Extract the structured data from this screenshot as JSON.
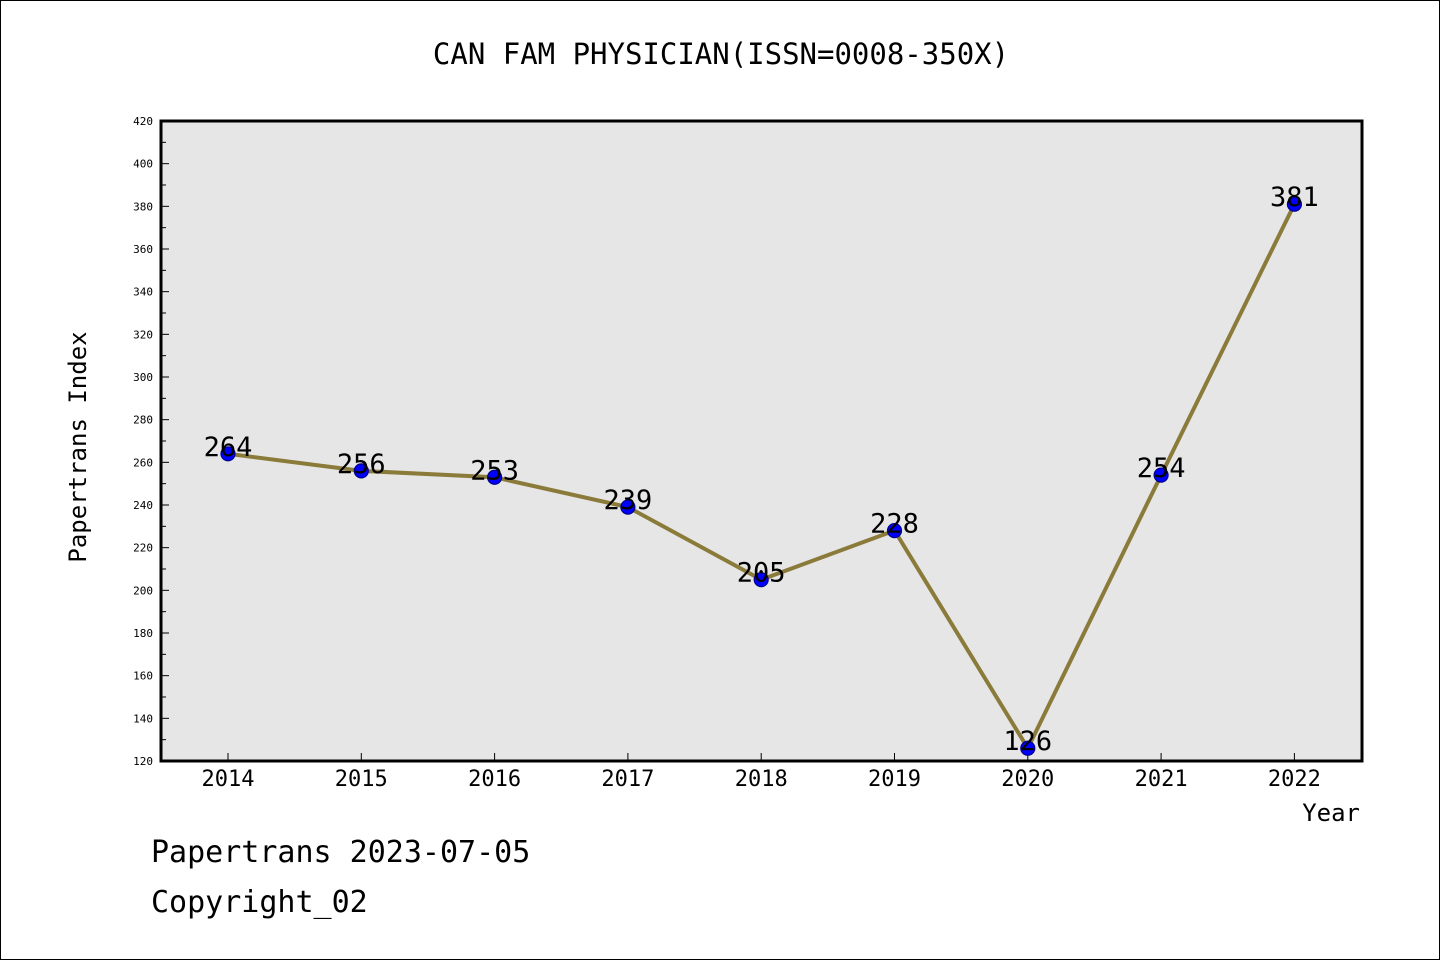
{
  "chart_data": {
    "type": "line",
    "title": "CAN FAM PHYSICIAN(ISSN=0008-350X)",
    "xlabel": "Year",
    "ylabel": "Papertrans Index",
    "categories": [
      "2014",
      "2015",
      "2016",
      "2017",
      "2018",
      "2019",
      "2020",
      "2021",
      "2022"
    ],
    "series": [
      {
        "values": [
          264,
          256,
          253,
          239,
          205,
          228,
          126,
          254,
          381
        ],
        "data_labels": [
          "264",
          "256",
          "253",
          "239",
          "205",
          "228",
          "126",
          "254",
          "381"
        ]
      }
    ],
    "ylim": [
      120,
      420
    ],
    "yticks": [
      120,
      140,
      160,
      180,
      200,
      220,
      240,
      260,
      280,
      300,
      320,
      340,
      360,
      380,
      400,
      420
    ],
    "ytick_labels": [
      "120",
      "140",
      "160",
      "180",
      "200",
      "220",
      "240",
      "260",
      "280",
      "300",
      "320",
      "340",
      "360",
      "380",
      "400",
      "420"
    ],
    "grid": false,
    "legend": "none"
  },
  "footer": {
    "line1": "Papertrans 2023-07-05",
    "line2": "Copyright_02"
  },
  "colors": {
    "line": "#8B7B3A",
    "marker_fill": "#0000FF",
    "marker_edge": "#00008B",
    "plot_background": "#E6E6E6",
    "axes_frame": "#000000",
    "page_background": "#FFFFFF"
  }
}
